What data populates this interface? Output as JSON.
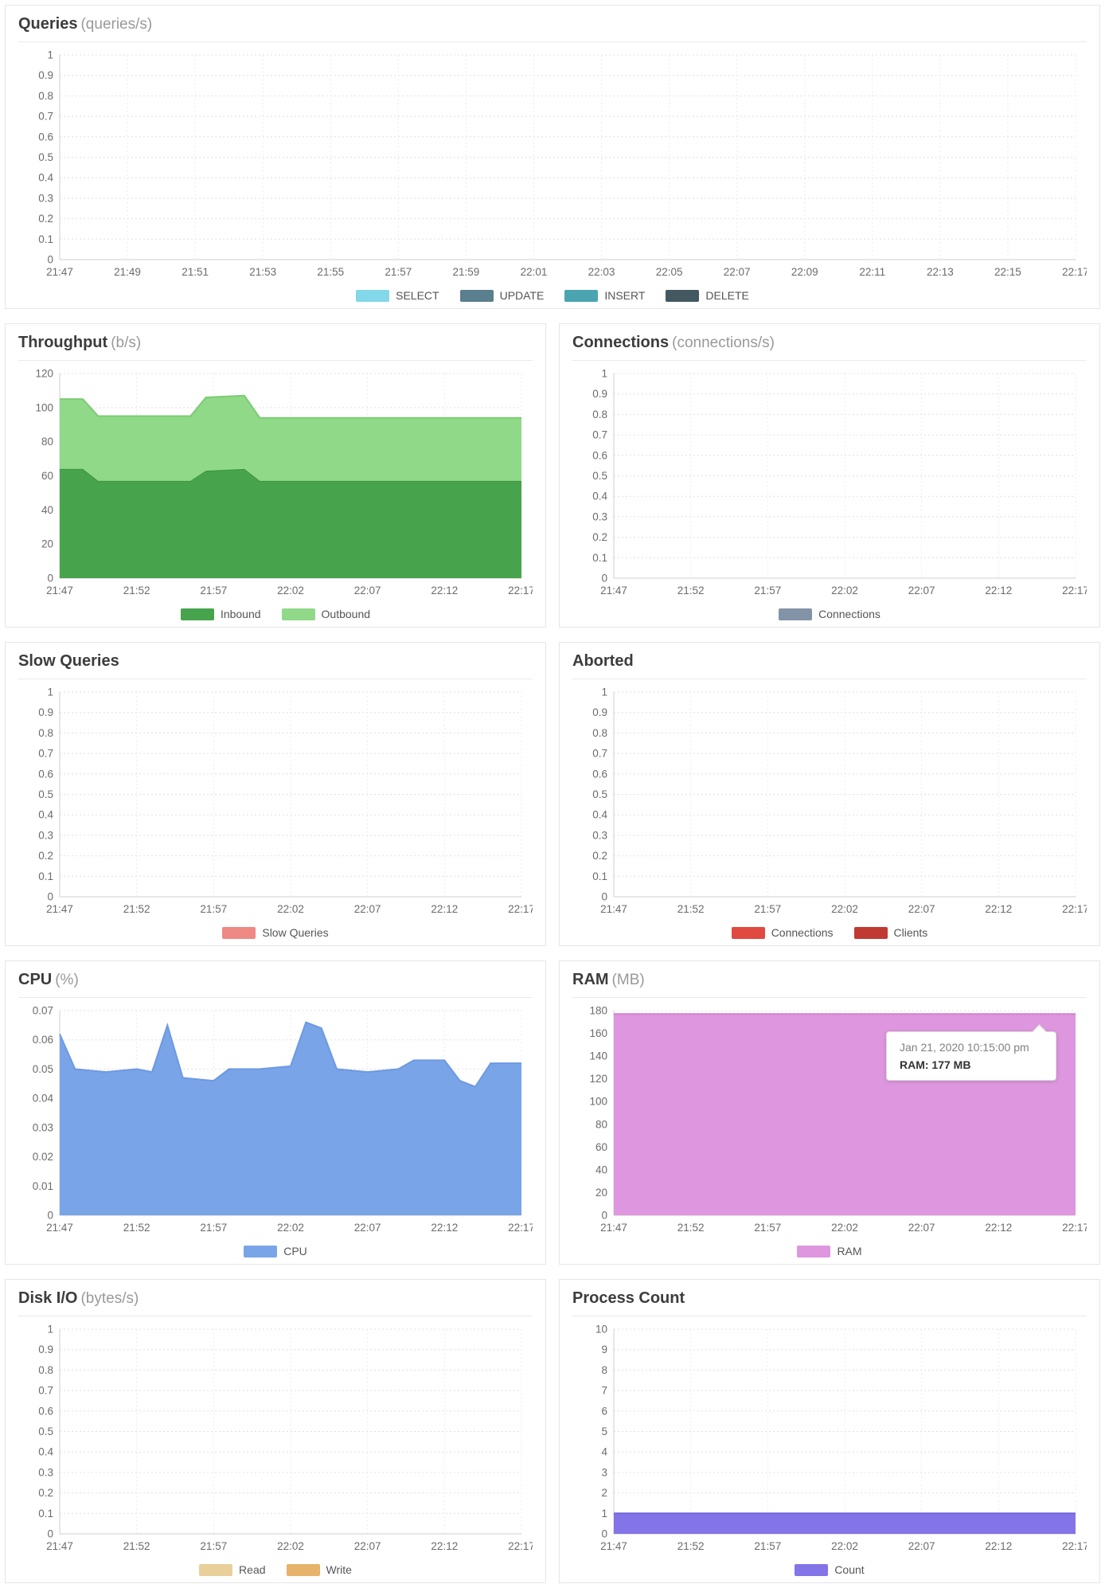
{
  "page": {
    "background": "#ffffff"
  },
  "chart_data": [
    {
      "id": "queries",
      "type": "area",
      "title": "Queries",
      "unit": "(queries/s)",
      "ylim": [
        0,
        1
      ],
      "y_ticks": [
        "1",
        "0.9",
        "0.8",
        "0.7",
        "0.6",
        "0.5",
        "0.4",
        "0.3",
        "0.2",
        "0.1",
        "0"
      ],
      "x_labels": [
        "21:47",
        "21:49",
        "21:51",
        "21:53",
        "21:55",
        "21:57",
        "21:59",
        "22:01",
        "22:03",
        "22:05",
        "22:07",
        "22:09",
        "22:11",
        "22:13",
        "22:15",
        "22:17"
      ],
      "stacked": false,
      "series": [
        {
          "name": "SELECT",
          "fill": "#82d8e8",
          "stroke": "#82d8e8",
          "points": []
        },
        {
          "name": "UPDATE",
          "fill": "#5a7f8e",
          "stroke": "#5a7f8e",
          "points": []
        },
        {
          "name": "INSERT",
          "fill": "#4aa5b1",
          "stroke": "#4aa5b1",
          "points": []
        },
        {
          "name": "DELETE",
          "fill": "#43595f",
          "stroke": "#43595f",
          "points": []
        }
      ]
    },
    {
      "id": "throughput",
      "type": "area",
      "title": "Throughput",
      "unit": "(b/s)",
      "ylim": [
        0,
        120
      ],
      "y_ticks": [
        "120",
        "100",
        "80",
        "60",
        "40",
        "20",
        "0"
      ],
      "x_labels": [
        "21:47",
        "21:52",
        "21:57",
        "22:02",
        "22:07",
        "22:12",
        "22:17"
      ],
      "stacked": true,
      "series": [
        {
          "name": "Inbound",
          "fill": "#48a44c",
          "stroke": "#3a9340",
          "points": [
            [
              0,
              64
            ],
            [
              1.5,
              64
            ],
            [
              2.5,
              57
            ],
            [
              8.5,
              57
            ],
            [
              9.5,
              63
            ],
            [
              12,
              64
            ],
            [
              13,
              57
            ],
            [
              30,
              57
            ]
          ]
        },
        {
          "name": "Outbound",
          "fill": "#8fd988",
          "stroke": "#7ccb74",
          "points": [
            [
              0,
              41
            ],
            [
              1.5,
              41
            ],
            [
              2.5,
              38
            ],
            [
              8.5,
              38
            ],
            [
              9.5,
              43
            ],
            [
              12,
              43
            ],
            [
              13,
              37
            ],
            [
              30,
              37
            ]
          ]
        }
      ]
    },
    {
      "id": "connections",
      "type": "area",
      "title": "Connections",
      "unit": "(connections/s)",
      "ylim": [
        0,
        1
      ],
      "y_ticks": [
        "1",
        "0.9",
        "0.8",
        "0.7",
        "0.6",
        "0.5",
        "0.4",
        "0.3",
        "0.2",
        "0.1",
        "0"
      ],
      "x_labels": [
        "21:47",
        "21:52",
        "21:57",
        "22:02",
        "22:07",
        "22:12",
        "22:17"
      ],
      "stacked": false,
      "series": [
        {
          "name": "Connections",
          "fill": "#8393a7",
          "stroke": "#8393a7",
          "points": []
        }
      ]
    },
    {
      "id": "slow-queries",
      "type": "area",
      "title": "Slow Queries",
      "unit": "",
      "ylim": [
        0,
        1
      ],
      "y_ticks": [
        "1",
        "0.9",
        "0.8",
        "0.7",
        "0.6",
        "0.5",
        "0.4",
        "0.3",
        "0.2",
        "0.1",
        "0"
      ],
      "x_labels": [
        "21:47",
        "21:52",
        "21:57",
        "22:02",
        "22:07",
        "22:12",
        "22:17"
      ],
      "stacked": false,
      "series": [
        {
          "name": "Slow Queries",
          "fill": "#ee8983",
          "stroke": "#ee8983",
          "points": []
        }
      ]
    },
    {
      "id": "aborted",
      "type": "area",
      "title": "Aborted",
      "unit": "",
      "ylim": [
        0,
        1
      ],
      "y_ticks": [
        "1",
        "0.9",
        "0.8",
        "0.7",
        "0.6",
        "0.5",
        "0.4",
        "0.3",
        "0.2",
        "0.1",
        "0"
      ],
      "x_labels": [
        "21:47",
        "21:52",
        "21:57",
        "22:02",
        "22:07",
        "22:12",
        "22:17"
      ],
      "stacked": false,
      "series": [
        {
          "name": "Connections",
          "fill": "#e04a41",
          "stroke": "#e04a41",
          "points": []
        },
        {
          "name": "Clients",
          "fill": "#c03a33",
          "stroke": "#c03a33",
          "points": []
        }
      ]
    },
    {
      "id": "cpu",
      "type": "area",
      "title": "CPU",
      "unit": "(%)",
      "ylim": [
        0,
        0.07
      ],
      "y_ticks": [
        "0.07",
        "0.06",
        "0.05",
        "0.04",
        "0.03",
        "0.02",
        "0.01",
        "0"
      ],
      "x_labels": [
        "21:47",
        "21:52",
        "21:57",
        "22:02",
        "22:07",
        "22:12",
        "22:17"
      ],
      "stacked": false,
      "series": [
        {
          "name": "CPU",
          "fill": "#7aa4e8",
          "stroke": "#6d99e2",
          "points": [
            [
              0,
              0.062
            ],
            [
              1,
              0.05
            ],
            [
              3,
              0.049
            ],
            [
              5,
              0.05
            ],
            [
              6,
              0.049
            ],
            [
              7,
              0.065
            ],
            [
              8,
              0.047
            ],
            [
              10,
              0.046
            ],
            [
              11,
              0.05
            ],
            [
              13,
              0.05
            ],
            [
              15,
              0.051
            ],
            [
              16,
              0.066
            ],
            [
              17,
              0.064
            ],
            [
              18,
              0.05
            ],
            [
              20,
              0.049
            ],
            [
              22,
              0.05
            ],
            [
              23,
              0.053
            ],
            [
              25,
              0.053
            ],
            [
              26,
              0.046
            ],
            [
              27,
              0.044
            ],
            [
              28,
              0.052
            ],
            [
              30,
              0.052
            ]
          ]
        }
      ]
    },
    {
      "id": "ram",
      "type": "area",
      "title": "RAM",
      "unit": "(MB)",
      "ylim": [
        0,
        180
      ],
      "y_ticks": [
        "180",
        "160",
        "140",
        "120",
        "100",
        "80",
        "60",
        "40",
        "20",
        "0"
      ],
      "x_labels": [
        "21:47",
        "21:52",
        "21:57",
        "22:02",
        "22:07",
        "22:12",
        "22:17"
      ],
      "stacked": false,
      "series": [
        {
          "name": "RAM",
          "fill": "#de97de",
          "stroke": "#d27ed2",
          "points": [
            [
              0,
              177
            ],
            [
              30,
              177
            ]
          ]
        }
      ],
      "tooltip": {
        "date": "Jan 21, 2020 10:15:00 pm",
        "value": "RAM: 177 MB"
      }
    },
    {
      "id": "disk-io",
      "type": "area",
      "title": "Disk I/O",
      "unit": "(bytes/s)",
      "ylim": [
        0,
        1
      ],
      "y_ticks": [
        "1",
        "0.9",
        "0.8",
        "0.7",
        "0.6",
        "0.5",
        "0.4",
        "0.3",
        "0.2",
        "0.1",
        "0"
      ],
      "x_labels": [
        "21:47",
        "21:52",
        "21:57",
        "22:02",
        "22:07",
        "22:12",
        "22:17"
      ],
      "stacked": false,
      "series": [
        {
          "name": "Read",
          "fill": "#e9cf9a",
          "stroke": "#e9cf9a",
          "points": []
        },
        {
          "name": "Write",
          "fill": "#e7b269",
          "stroke": "#e7b269",
          "points": []
        }
      ]
    },
    {
      "id": "process-count",
      "type": "area",
      "title": "Process Count",
      "unit": "",
      "ylim": [
        0,
        10
      ],
      "y_ticks": [
        "10",
        "9",
        "8",
        "7",
        "6",
        "5",
        "4",
        "3",
        "2",
        "1",
        "0"
      ],
      "x_labels": [
        "21:47",
        "21:52",
        "21:57",
        "22:02",
        "22:07",
        "22:12",
        "22:17"
      ],
      "stacked": false,
      "series": [
        {
          "name": "Count",
          "fill": "#8374e8",
          "stroke": "#7566dd",
          "points": [
            [
              0,
              1
            ],
            [
              30,
              1
            ]
          ]
        }
      ]
    }
  ]
}
